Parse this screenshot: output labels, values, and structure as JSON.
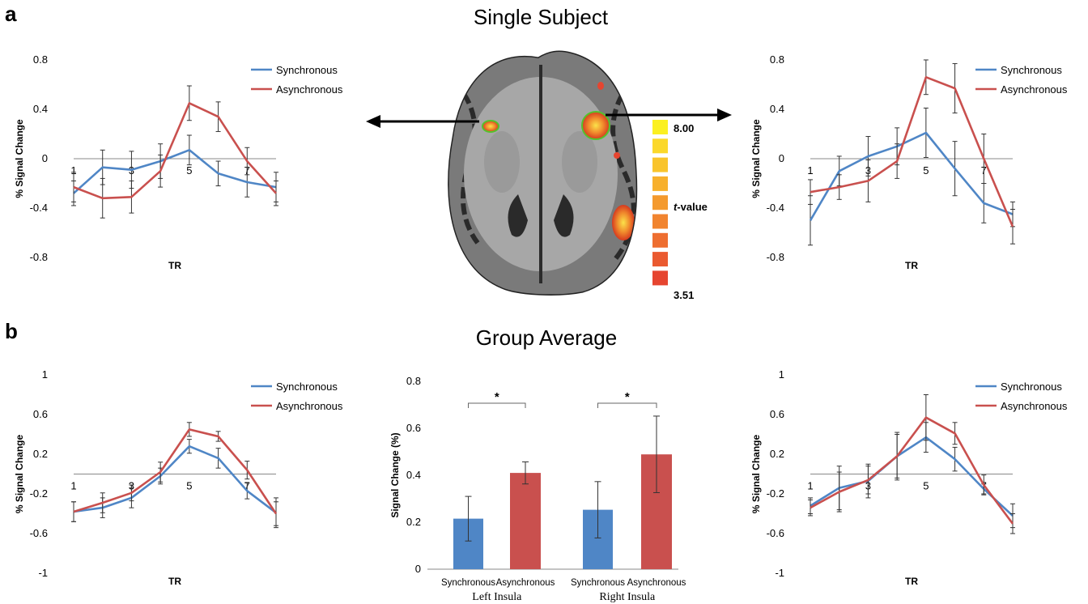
{
  "panels": {
    "a": {
      "letter": "a",
      "title": "Single Subject"
    },
    "b": {
      "letter": "b",
      "title": "Group Average"
    }
  },
  "colors": {
    "sync": "#4f86c6",
    "async": "#c9504e",
    "axis": "#888888"
  },
  "colorbar": {
    "max_label": "8.00",
    "min_label": "3.51",
    "label_italic": "t",
    "label_rest": "-value",
    "colors": [
      "#fbf021",
      "#fbd82a",
      "#f9c42b",
      "#f7b02c",
      "#f49a2e",
      "#f1842f",
      "#ee6e30",
      "#ea5a30",
      "#e64530"
    ]
  },
  "brain_image": {
    "type": "axial MRI slice with activation overlay (left and right insula highlighted)"
  },
  "chart_data": [
    {
      "type": "line",
      "id": "a-left",
      "xlabel": "TR",
      "ylabel": "% Signal Change",
      "ylim": [
        -0.8,
        0.8
      ],
      "yticks": [
        "0.8",
        "0.4",
        "0",
        "-0.4",
        "-0.8"
      ],
      "xticklabels": [
        "1",
        "3",
        "5",
        "7"
      ],
      "x": [
        1,
        2,
        3,
        4,
        5,
        6,
        7,
        8
      ],
      "series": [
        {
          "name": "Synchronous",
          "values": [
            -0.28,
            -0.07,
            -0.09,
            -0.02,
            0.07,
            -0.12,
            -0.19,
            -0.23
          ],
          "err": [
            0.1,
            0.14,
            0.15,
            0.14,
            0.12,
            0.1,
            0.12,
            0.12
          ]
        },
        {
          "name": "Asynchronous",
          "values": [
            -0.23,
            -0.32,
            -0.31,
            -0.1,
            0.45,
            0.34,
            -0.02,
            -0.28
          ],
          "err": [
            0.12,
            0.16,
            0.13,
            0.13,
            0.14,
            0.12,
            0.11,
            0.1
          ]
        }
      ]
    },
    {
      "type": "line",
      "id": "a-right",
      "xlabel": "TR",
      "ylabel": "% Signal Change",
      "ylim": [
        -0.8,
        0.8
      ],
      "yticks": [
        "0.8",
        "0.4",
        "0",
        "-0.4",
        "-0.8"
      ],
      "xticklabels": [
        "1",
        "3",
        "5",
        "7"
      ],
      "x": [
        1,
        2,
        3,
        4,
        5,
        6,
        7,
        8
      ],
      "series": [
        {
          "name": "Synchronous",
          "values": [
            -0.5,
            -0.1,
            0.02,
            0.1,
            0.21,
            -0.08,
            -0.36,
            -0.45
          ],
          "err": [
            0.2,
            0.12,
            0.16,
            0.15,
            0.2,
            0.22,
            0.16,
            0.1
          ]
        },
        {
          "name": "Asynchronous",
          "values": [
            -0.27,
            -0.23,
            -0.18,
            -0.02,
            0.66,
            0.57,
            0.0,
            -0.55
          ],
          "err": [
            0.1,
            0.1,
            0.17,
            0.14,
            0.14,
            0.2,
            0.2,
            0.14
          ]
        }
      ]
    },
    {
      "type": "line",
      "id": "b-left",
      "xlabel": "TR",
      "ylabel": "% Signal Change",
      "ylim": [
        -1,
        1
      ],
      "yticks": [
        "1",
        "0.6",
        "0.2",
        "-0.2",
        "-0.6",
        "-1"
      ],
      "xticklabels": [
        "1",
        "3",
        "5",
        "7"
      ],
      "x": [
        1,
        2,
        3,
        4,
        5,
        6,
        7,
        8
      ],
      "series": [
        {
          "name": "Synchronous",
          "values": [
            -0.38,
            -0.34,
            -0.24,
            -0.02,
            0.28,
            0.16,
            -0.17,
            -0.39
          ],
          "err": [
            0.1,
            0.1,
            0.1,
            0.08,
            0.07,
            0.1,
            0.08,
            0.15
          ]
        },
        {
          "name": "Asynchronous",
          "values": [
            -0.38,
            -0.29,
            -0.19,
            0.02,
            0.45,
            0.38,
            0.04,
            -0.4
          ],
          "err": [
            0.1,
            0.1,
            0.08,
            0.1,
            0.07,
            0.05,
            0.09,
            0.12
          ]
        }
      ]
    },
    {
      "type": "line",
      "id": "b-right",
      "xlabel": "TR",
      "ylabel": "% Signal Change",
      "ylim": [
        -1,
        1
      ],
      "yticks": [
        "1",
        "0.6",
        "0.2",
        "-0.2",
        "-0.6",
        "-1"
      ],
      "xticklabels": [
        "1",
        "3",
        "5",
        "7"
      ],
      "x": [
        1,
        2,
        3,
        4,
        5,
        6,
        7,
        8
      ],
      "series": [
        {
          "name": "Synchronous",
          "values": [
            -0.32,
            -0.14,
            -0.07,
            0.18,
            0.37,
            0.15,
            -0.15,
            -0.42
          ],
          "err": [
            0.08,
            0.22,
            0.17,
            0.22,
            0.15,
            0.12,
            0.05,
            0.12
          ]
        },
        {
          "name": "Asynchronous",
          "values": [
            -0.34,
            -0.18,
            -0.06,
            0.18,
            0.57,
            0.41,
            -0.11,
            -0.5
          ],
          "err": [
            0.08,
            0.2,
            0.14,
            0.24,
            0.23,
            0.11,
            0.1,
            0.1
          ]
        }
      ]
    },
    {
      "type": "bar",
      "id": "b-bar",
      "ylabel": "Signal Change (%)",
      "ylim": [
        0,
        0.8
      ],
      "yticks": [
        "0.8",
        "0.6",
        "0.4",
        "0.2",
        "0"
      ],
      "groups": [
        "Left Insula",
        "Right Insula"
      ],
      "categories": [
        "Synchronous",
        "Asynchronous"
      ],
      "series": [
        {
          "name": "Left Insula",
          "values": [
            0.215,
            0.41
          ],
          "err": [
            0.095,
            0.047
          ]
        },
        {
          "name": "Right Insula",
          "values": [
            0.253,
            0.489
          ],
          "err": [
            0.12,
            0.163
          ]
        }
      ],
      "significance": [
        "*",
        "*"
      ]
    }
  ]
}
